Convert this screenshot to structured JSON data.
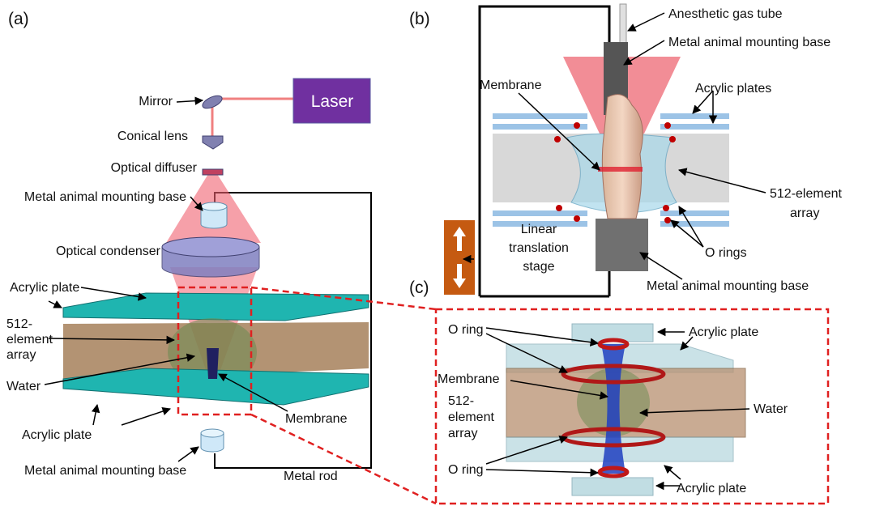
{
  "panels": [
    {
      "label": "(a)",
      "laser": "Laser",
      "mirror": "Mirror",
      "conical_lens": "Conical lens",
      "optical_diffuser": "Optical diffuser",
      "mounting_base_top": "Metal animal mounting base",
      "optical_condenser": "Optical condenser",
      "acrylic_plate_top": "Acrylic plate",
      "array": [
        "512-",
        "element",
        "array"
      ],
      "water": "Water",
      "membrane": "Membrane",
      "acrylic_plate_bottom": "Acrylic plate",
      "mounting_base_bottom": "Metal animal mounting base",
      "metal_rod": "Metal rod"
    },
    {
      "label": "(b)",
      "gas_tube": "Anesthetic gas tube",
      "mounting_base_top": "Metal animal mounting base",
      "membrane": "Membrane",
      "acrylic_plates": "Acrylic plates",
      "array": [
        "512-element",
        "array"
      ],
      "stage": [
        "Linear",
        "translation",
        "stage"
      ],
      "o_rings": "O rings",
      "mounting_base_bottom": "Metal animal mounting base"
    },
    {
      "label": "(c)",
      "o_ring_top": "O ring",
      "acrylic_plate_top": "Acrylic plate",
      "membrane": "Membrane",
      "array": [
        "512-",
        "element",
        "array"
      ],
      "water": "Water",
      "o_ring_bottom": "O ring",
      "acrylic_plate_bottom": "Acrylic plate"
    }
  ]
}
